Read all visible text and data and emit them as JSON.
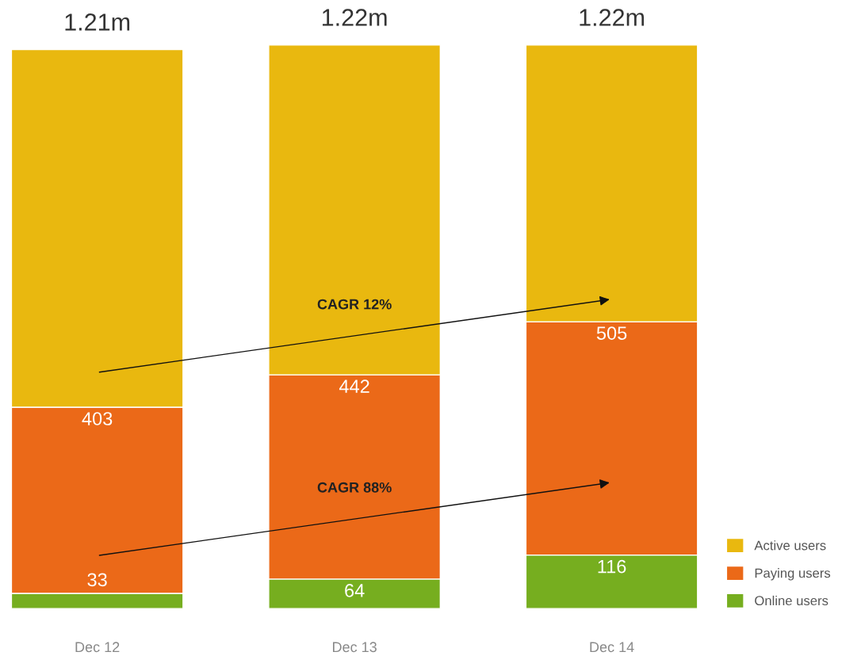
{
  "chart_data": {
    "type": "bar",
    "stacked": true,
    "categories": [
      "Dec 12",
      "Dec 13",
      "Dec 14"
    ],
    "series": [
      {
        "name": "Online users",
        "color": "#76ae1f",
        "values": [
          33,
          64,
          116
        ],
        "data_labels": true
      },
      {
        "name": "Paying users",
        "color": "#eb6918",
        "values": [
          403,
          442,
          505
        ],
        "data_labels": true
      },
      {
        "name": "Active users",
        "color": "#e9b80f",
        "values": [
          774,
          714,
          599
        ]
      }
    ],
    "totals": [
      "1.21m",
      "1.22m",
      "1.22m"
    ],
    "annotations": [
      "CAGR 12%",
      "CAGR 88%"
    ],
    "legend": "bottom right",
    "grid": false
  }
}
